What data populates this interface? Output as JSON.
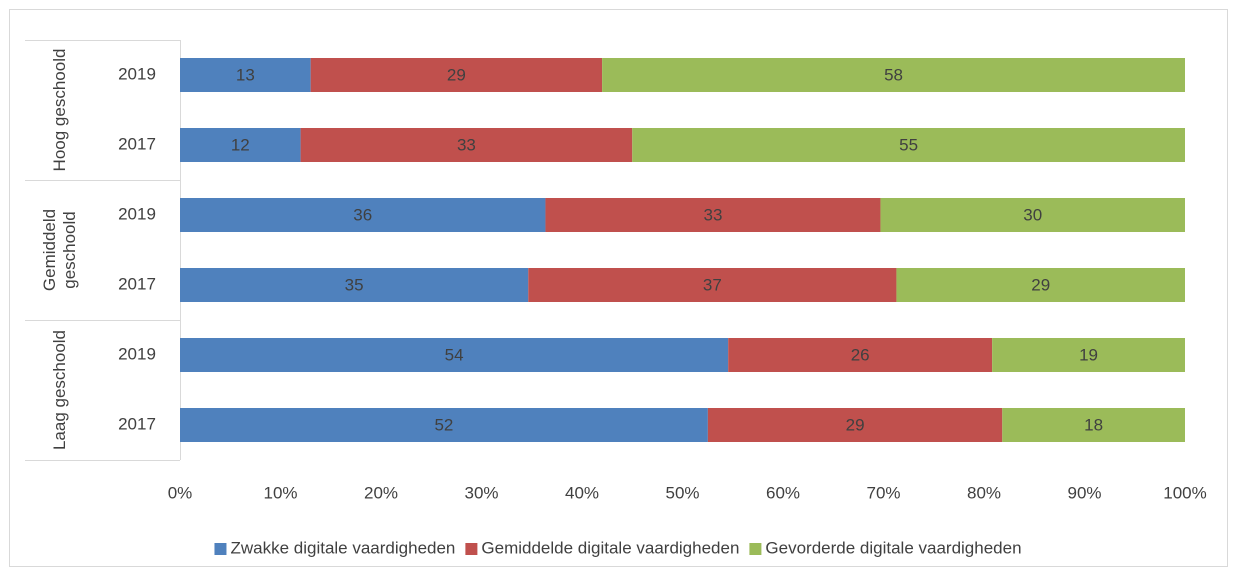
{
  "chart_data": {
    "type": "bar",
    "orientation": "horizontal",
    "stack": "percent",
    "groups": [
      {
        "name": "Hoog geschoold",
        "categories": [
          "2019",
          "2017"
        ]
      },
      {
        "name": "Gemiddeld geschoold",
        "categories": [
          "2019",
          "2017"
        ]
      },
      {
        "name": "Laag geschoold",
        "categories": [
          "2019",
          "2017"
        ]
      }
    ],
    "series": [
      {
        "name": "Zwakke digitale vaardigheden",
        "color": "#4f81bd",
        "values": [
          13,
          12,
          36,
          35,
          54,
          52
        ]
      },
      {
        "name": "Gemiddelde digitale vaardigheden",
        "color": "#c0504d",
        "values": [
          29,
          33,
          33,
          37,
          26,
          29
        ]
      },
      {
        "name": "Gevorderde digitale vaardigheden",
        "color": "#9bbb59",
        "values": [
          58,
          55,
          30,
          29,
          19,
          18
        ]
      }
    ],
    "xlim": [
      0,
      100
    ],
    "xticks": [
      {
        "value": 0,
        "label": "0%"
      },
      {
        "value": 10,
        "label": "10%"
      },
      {
        "value": 20,
        "label": "20%"
      },
      {
        "value": 30,
        "label": "30%"
      },
      {
        "value": 40,
        "label": "40%"
      },
      {
        "value": 50,
        "label": "50%"
      },
      {
        "value": 60,
        "label": "60%"
      },
      {
        "value": 70,
        "label": "70%"
      },
      {
        "value": 80,
        "label": "80%"
      },
      {
        "value": 90,
        "label": "90%"
      },
      {
        "value": 100,
        "label": "100%"
      }
    ],
    "legend": "bottom"
  }
}
